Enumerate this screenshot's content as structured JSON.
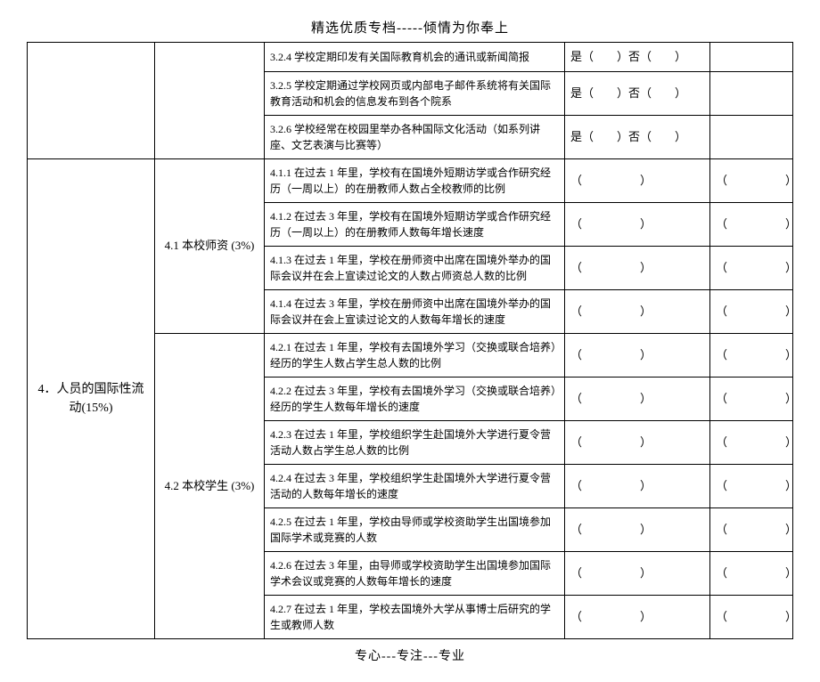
{
  "header": "精选优质专档-----倾情为你奉上",
  "footer": "专心---专注---专业",
  "section4_title": "4．人员的国际性流动(15%)",
  "sub_4_1": "4.1 本校师资 (3%)",
  "sub_4_2": "4.2 本校学生 (3%)",
  "yes_no": "是（　　）否（　　）",
  "blank_paren": "（　　　　　）",
  "rows": {
    "r324": "3.2.4 学校定期印发有关国际教育机会的通讯或新闻简报",
    "r325": "3.2.5 学校定期通过学校网页或内部电子邮件系统将有关国际教育活动和机会的信息发布到各个院系",
    "r326": "3.2.6 学校经常在校园里举办各种国际文化活动（如系列讲座、文艺表演与比赛等）",
    "r411": "4.1.1 在过去 1 年里，学校有在国境外短期访学或合作研究经历（一周以上）的在册教师人数占全校教师的比例",
    "r412": "4.1.2 在过去 3 年里，学校有在国境外短期访学或合作研究经历（一周以上）的在册教师人数每年增长速度",
    "r413": "4.1.3 在过去 1 年里，学校在册师资中出席在国境外举办的国际会议并在会上宣读过论文的人数占师资总人数的比例",
    "r414": "4.1.4 在过去 3 年里，学校在册师资中出席在国境外举办的国际会议并在会上宣读过论文的人数每年增长的速度",
    "r421": "4.2.1 在过去 1 年里，学校有去国境外学习（交换或联合培养）经历的学生人数占学生总人数的比例",
    "r422": "4.2.2 在过去 3 年里，学校有去国境外学习（交换或联合培养）经历的学生人数每年增长的速度",
    "r423": "4.2.3 在过去 1 年里，学校组织学生赴国境外大学进行夏令营活动人数占学生总人数的比例",
    "r424": "4.2.4 在过去 3 年里，学校组织学生赴国境外大学进行夏令营活动的人数每年增长的速度",
    "r425": "4.2.5 在过去 1 年里，学校由导师或学校资助学生出国境参加国际学术或竞赛的人数",
    "r426": "4.2.6 在过去 3 年里，由导师或学校资助学生出国境参加国际学术会议或竞赛的人数每年增长的速度",
    "r427": "4.2.7 在过去 1 年里，学校去国境外大学从事博士后研究的学生或教师人数"
  }
}
